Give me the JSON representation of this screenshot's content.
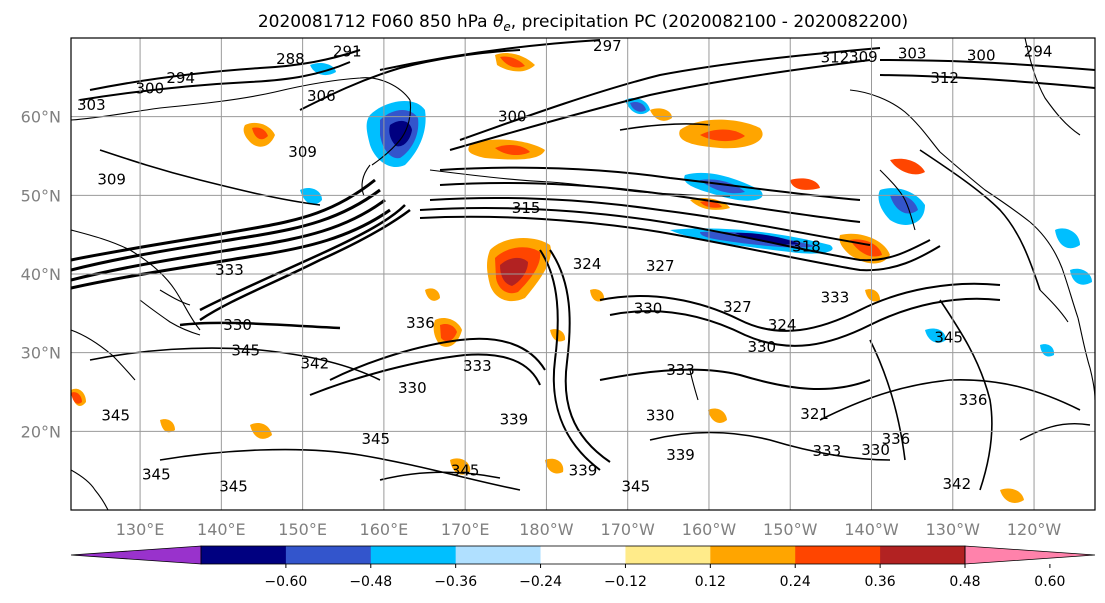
{
  "title": {
    "prefix": "2020081712 F060 850 hPa ",
    "theta": "θ",
    "theta_sub": "e",
    "suffix": ", precipitation PC (2020082100 - 2020082200)"
  },
  "map": {
    "lat_labels": [
      "60°N",
      "50°N",
      "40°N",
      "30°N",
      "20°N"
    ],
    "lat_values": [
      60,
      50,
      40,
      30,
      20
    ],
    "lon_labels": [
      "130°E",
      "140°E",
      "150°E",
      "160°E",
      "170°E",
      "180°W",
      "170°W",
      "160°W",
      "150°W",
      "140°W",
      "130°W",
      "120°W"
    ],
    "lon_values": [
      130,
      140,
      150,
      160,
      170,
      180,
      190,
      200,
      210,
      220,
      230,
      240
    ],
    "lon_range": [
      121.5,
      247.5
    ],
    "lat_range": [
      10,
      70
    ]
  },
  "contour_labels": [
    {
      "text": "288",
      "lon": 148.5,
      "lat": 67.3
    },
    {
      "text": "291",
      "lon": 155.5,
      "lat": 68.3
    },
    {
      "text": "297",
      "lon": 187.5,
      "lat": 69.0
    },
    {
      "text": "312",
      "lon": 215.5,
      "lat": 67.5
    },
    {
      "text": "309",
      "lon": 219.0,
      "lat": 67.6
    },
    {
      "text": "303",
      "lon": 225.0,
      "lat": 68.0
    },
    {
      "text": "300",
      "lon": 233.5,
      "lat": 67.8
    },
    {
      "text": "294",
      "lon": 240.5,
      "lat": 68.3
    },
    {
      "text": "312",
      "lon": 229.0,
      "lat": 64.9
    },
    {
      "text": "294",
      "lon": 135.0,
      "lat": 64.9
    },
    {
      "text": "300",
      "lon": 131.2,
      "lat": 63.6
    },
    {
      "text": "303",
      "lon": 124.0,
      "lat": 61.5
    },
    {
      "text": "306",
      "lon": 152.3,
      "lat": 62.6
    },
    {
      "text": "309",
      "lon": 150.0,
      "lat": 55.5
    },
    {
      "text": "300",
      "lon": 175.8,
      "lat": 60.0
    },
    {
      "text": "309",
      "lon": 126.5,
      "lat": 52.0
    },
    {
      "text": "315",
      "lon": 177.5,
      "lat": 48.4
    },
    {
      "text": "318",
      "lon": 212.0,
      "lat": 43.5
    },
    {
      "text": "324",
      "lon": 185.0,
      "lat": 41.3
    },
    {
      "text": "327",
      "lon": 194.0,
      "lat": 41.0
    },
    {
      "text": "330",
      "lon": 142.0,
      "lat": 33.5
    },
    {
      "text": "333",
      "lon": 141.0,
      "lat": 40.5
    },
    {
      "text": "336",
      "lon": 164.5,
      "lat": 33.8
    },
    {
      "text": "330",
      "lon": 192.5,
      "lat": 35.6
    },
    {
      "text": "327",
      "lon": 203.5,
      "lat": 35.8
    },
    {
      "text": "333",
      "lon": 215.5,
      "lat": 37.0
    },
    {
      "text": "324",
      "lon": 209.0,
      "lat": 33.5
    },
    {
      "text": "330",
      "lon": 206.5,
      "lat": 30.7
    },
    {
      "text": "345",
      "lon": 143.0,
      "lat": 30.3
    },
    {
      "text": "342",
      "lon": 151.5,
      "lat": 28.6
    },
    {
      "text": "333",
      "lon": 171.5,
      "lat": 28.3
    },
    {
      "text": "330",
      "lon": 163.5,
      "lat": 25.5
    },
    {
      "text": "333",
      "lon": 196.5,
      "lat": 27.8
    },
    {
      "text": "330",
      "lon": 194.0,
      "lat": 22.0
    },
    {
      "text": "321",
      "lon": 213.0,
      "lat": 22.2
    },
    {
      "text": "339",
      "lon": 176.0,
      "lat": 21.5
    },
    {
      "text": "345",
      "lon": 127.0,
      "lat": 22.0
    },
    {
      "text": "345",
      "lon": 159.0,
      "lat": 19.0
    },
    {
      "text": "333",
      "lon": 214.5,
      "lat": 17.5
    },
    {
      "text": "330",
      "lon": 220.5,
      "lat": 17.6
    },
    {
      "text": "336",
      "lon": 223.0,
      "lat": 19.0
    },
    {
      "text": "336",
      "lon": 232.5,
      "lat": 24.0
    },
    {
      "text": "339",
      "lon": 196.5,
      "lat": 17.0
    },
    {
      "text": "339",
      "lon": 184.5,
      "lat": 15.0
    },
    {
      "text": "345",
      "lon": 170.0,
      "lat": 15.0
    },
    {
      "text": "345",
      "lon": 191.0,
      "lat": 13.0
    },
    {
      "text": "345",
      "lon": 132.0,
      "lat": 14.5
    },
    {
      "text": "345",
      "lon": 141.5,
      "lat": 13.0
    },
    {
      "text": "342",
      "lon": 230.5,
      "lat": 13.3
    },
    {
      "text": "345",
      "lon": 229.5,
      "lat": 31.9
    }
  ],
  "colorbar": {
    "ticks": [
      "−0.60",
      "−0.48",
      "−0.36",
      "−0.24",
      "−0.12",
      "0.12",
      "0.24",
      "0.36",
      "0.48",
      "0.60"
    ],
    "tick_values": [
      -0.6,
      -0.48,
      -0.36,
      -0.24,
      -0.12,
      0.12,
      0.24,
      0.36,
      0.48,
      0.6
    ],
    "colors": [
      "#9932cc",
      "#000080",
      "#3355cc",
      "#00bfff",
      "#b0e0ff",
      "#ffffff",
      "#ffeb8a",
      "#ffa500",
      "#ff4500",
      "#b22222",
      "#ff82ab"
    ]
  }
}
